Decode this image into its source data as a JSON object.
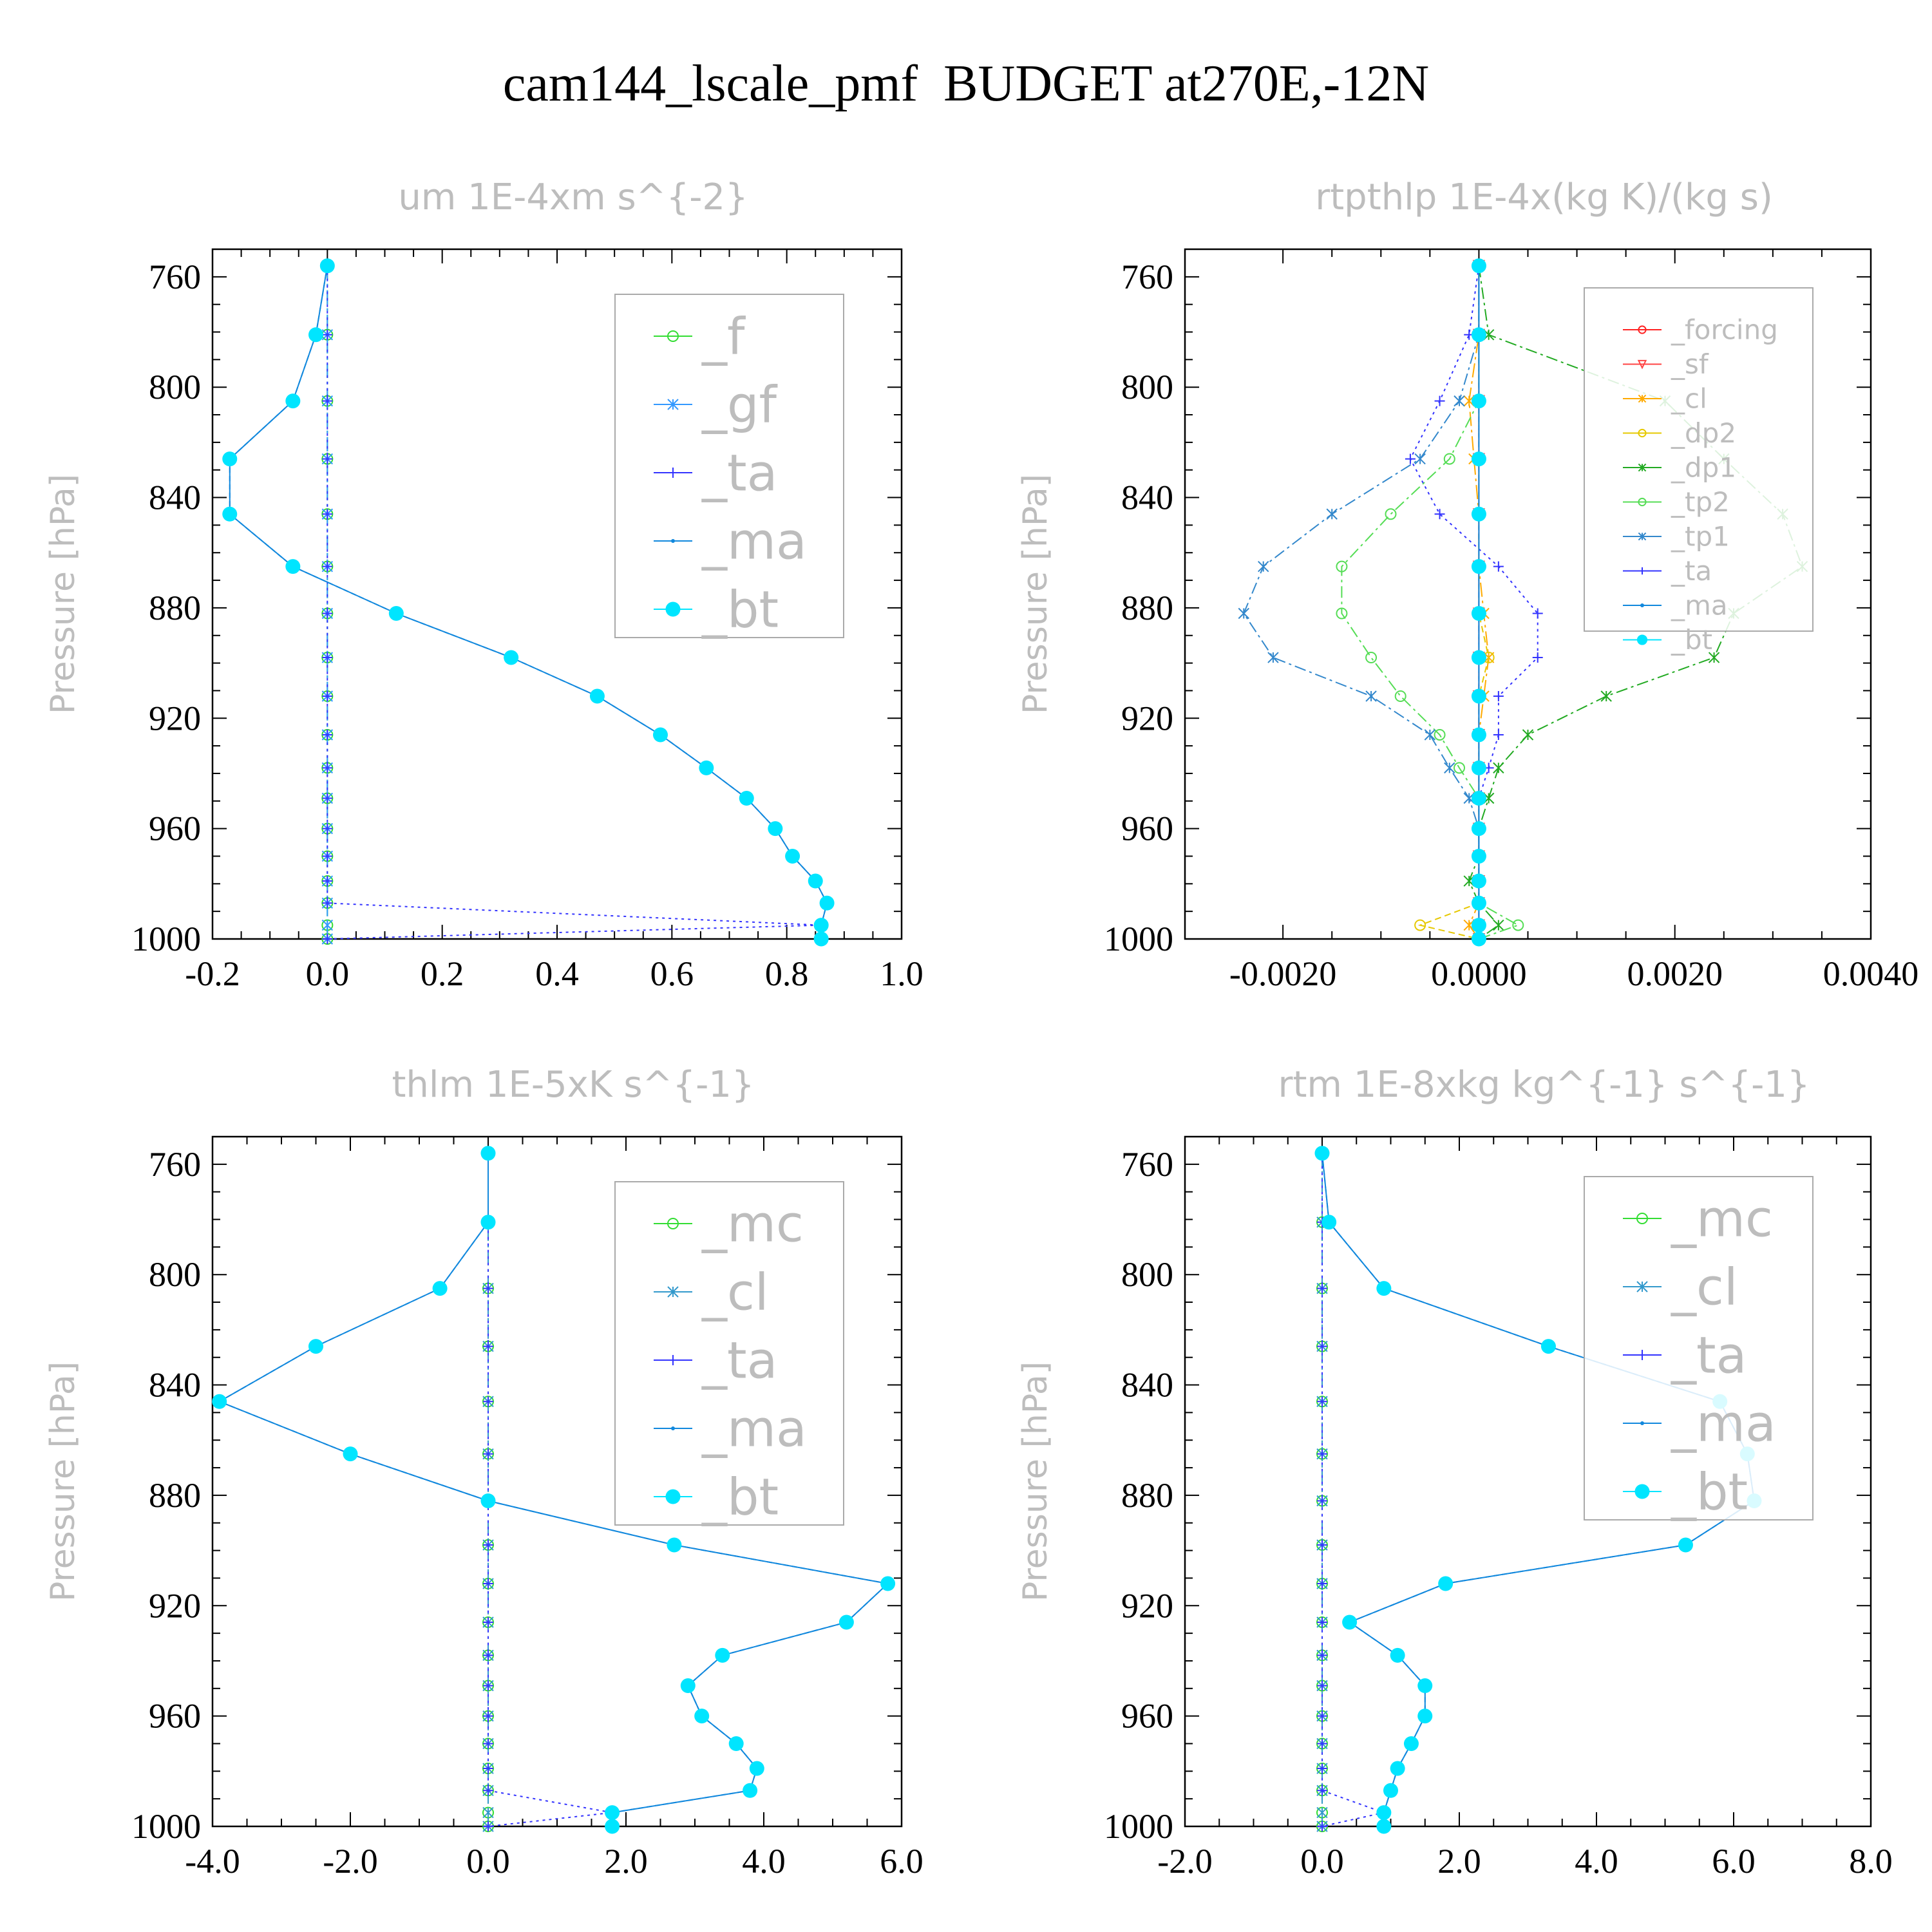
{
  "title": "cam144_lscale_pmf  BUDGET at270E,-12N",
  "colors": {
    "axis": "#000000",
    "thin_text": "#bdbdbd",
    "legend_border": "#aaaaaa",
    "_f": "#33dd33",
    "_gf": "#3399ff",
    "_ta": "#3333ff",
    "_ma": "#1188dd",
    "_bt": "#00e5ff",
    "_mc": "#33dd33",
    "_cl": "#3399cc",
    "_forcing": "#ff2222",
    "_sf": "#ff4444",
    "_cl_rtp": "#ffaa00",
    "_dp2": "#e6c800",
    "_dp1": "#22aa22",
    "_tp2": "#55dd55",
    "_tp1": "#3388cc"
  },
  "chart_data": [
    {
      "type": "line",
      "title": "um  1E-4xm s^{-2}",
      "ylabel": "Pressure [hPa]",
      "xlim": [
        -0.2,
        1.0
      ],
      "ylim": [
        750,
        1000
      ],
      "xticks": [
        "-0.2",
        "0.0",
        "0.2",
        "0.4",
        "0.6",
        "0.8",
        "1.0"
      ],
      "xtick_values": [
        -0.2,
        0.0,
        0.2,
        0.4,
        0.6,
        0.8,
        1.0
      ],
      "yticks": [
        "760",
        "800",
        "840",
        "880",
        "920",
        "960",
        "1000"
      ],
      "ytick_values": [
        760,
        800,
        840,
        880,
        920,
        960,
        1000
      ],
      "legend": "upper-right",
      "levels": [
        756,
        781,
        805,
        826,
        846,
        865,
        882,
        898,
        912,
        926,
        938,
        949,
        960,
        970,
        979,
        987,
        995,
        1000
      ],
      "series": [
        {
          "name": "_f",
          "values": [
            0,
            0,
            0,
            0,
            0,
            0,
            0,
            0,
            0,
            0,
            0,
            0,
            0,
            0,
            0,
            0,
            0,
            0
          ]
        },
        {
          "name": "_gf",
          "values": [
            0,
            0,
            0,
            0,
            0,
            0,
            0,
            0,
            0,
            0,
            0,
            0,
            0,
            0,
            0,
            0,
            0,
            0
          ]
        },
        {
          "name": "_ta",
          "values": [
            0,
            0,
            0,
            0,
            0,
            0,
            0,
            0,
            0,
            0,
            0,
            0,
            0,
            0,
            0,
            0,
            0.86,
            0
          ]
        },
        {
          "name": "_ma",
          "values": [
            0,
            -0.02,
            -0.06,
            -0.17,
            -0.17,
            -0.06,
            0.12,
            0.32,
            0.47,
            0.58,
            0.66,
            0.73,
            0.78,
            0.81,
            0.85,
            0.87,
            0.86,
            0.86
          ]
        },
        {
          "name": "_bt",
          "values": [
            0,
            -0.02,
            -0.06,
            -0.17,
            -0.17,
            -0.06,
            0.12,
            0.32,
            0.47,
            0.58,
            0.66,
            0.73,
            0.78,
            0.81,
            0.85,
            0.87,
            0.86,
            0.86
          ]
        }
      ]
    },
    {
      "type": "line",
      "title": "rtpthlp  1E-4x(kg K)/(kg s)",
      "ylabel": "Pressure [hPa]",
      "xlim": [
        -0.003,
        0.004
      ],
      "ylim": [
        750,
        1000
      ],
      "xticks": [
        "-0.0020",
        "0.0000",
        "0.0020",
        "0.0040"
      ],
      "xtick_values": [
        -0.002,
        0.0,
        0.002,
        0.004
      ],
      "yticks": [
        "760",
        "800",
        "840",
        "880",
        "920",
        "960",
        "1000"
      ],
      "ytick_values": [
        760,
        800,
        840,
        880,
        920,
        960,
        1000
      ],
      "legend": "upper-right",
      "levels": [
        756,
        781,
        805,
        826,
        846,
        865,
        882,
        898,
        912,
        926,
        938,
        949,
        960,
        970,
        979,
        987,
        995,
        1000
      ],
      "series": [
        {
          "name": "_forcing",
          "values": [
            0,
            0,
            0,
            0,
            0,
            0,
            0,
            0,
            0,
            0,
            0,
            0,
            0,
            0,
            0,
            0,
            0,
            0
          ]
        },
        {
          "name": "_sf",
          "values": [
            0,
            0,
            0,
            0,
            0,
            0,
            0,
            0,
            0,
            0,
            0,
            0,
            0,
            0,
            0,
            0,
            0,
            0
          ]
        },
        {
          "name": "_cl",
          "values": [
            0,
            0,
            -0.0001,
            -5e-05,
            0,
            0,
            5e-05,
            0.0001,
            5e-05,
            0,
            0,
            0,
            0,
            0,
            0,
            0,
            -0.0001,
            0
          ]
        },
        {
          "name": "_dp2",
          "values": [
            0,
            0,
            0,
            0,
            0,
            0,
            0,
            0.0001,
            0,
            0,
            0,
            0,
            0,
            0,
            0,
            0,
            -0.0006,
            0
          ]
        },
        {
          "name": "_dp1",
          "values": [
            0,
            0.0001,
            0.0019,
            0.0025,
            0.0031,
            0.0033,
            0.0026,
            0.0024,
            0.0013,
            0.0005,
            0.0002,
            0.0001,
            0,
            0,
            -0.0001,
            0,
            0.0002,
            0
          ]
        },
        {
          "name": "_tp2",
          "values": [
            0,
            0,
            0,
            -0.0003,
            -0.0009,
            -0.0014,
            -0.0014,
            -0.0011,
            -0.0008,
            -0.0004,
            -0.0002,
            0,
            0,
            0,
            0,
            0,
            0.0004,
            0
          ]
        },
        {
          "name": "_tp1",
          "values": [
            0,
            0,
            -0.0002,
            -0.0006,
            -0.0015,
            -0.0022,
            -0.0024,
            -0.0021,
            -0.0011,
            -0.0005,
            -0.0003,
            -0.0001,
            0,
            0,
            0,
            0,
            0,
            0
          ]
        },
        {
          "name": "_ta",
          "values": [
            0,
            -0.0001,
            -0.0004,
            -0.0007,
            -0.0004,
            0.0002,
            0.0006,
            0.0006,
            0.0002,
            0.0002,
            0.0001,
            0,
            0,
            0,
            0,
            0,
            0,
            0
          ]
        },
        {
          "name": "_ma",
          "values": [
            0,
            0,
            0,
            0,
            0,
            0,
            0,
            0,
            0,
            0,
            0,
            0,
            0,
            0,
            0,
            0,
            0,
            0
          ]
        },
        {
          "name": "_bt",
          "values": [
            0,
            0,
            0,
            0,
            0,
            0,
            0,
            0,
            0,
            0,
            0,
            0,
            0,
            0,
            0,
            0,
            0,
            0
          ]
        }
      ]
    },
    {
      "type": "line",
      "title": "thlm  1E-5xK s^{-1}",
      "ylabel": "Pressure [hPa]",
      "xlim": [
        -4.0,
        6.0
      ],
      "ylim": [
        750,
        1000
      ],
      "xticks": [
        "-4.0",
        "-2.0",
        "0.0",
        "2.0",
        "4.0",
        "6.0"
      ],
      "xtick_values": [
        -4,
        -2,
        0,
        2,
        4,
        6
      ],
      "yticks": [
        "760",
        "800",
        "840",
        "880",
        "920",
        "960",
        "1000"
      ],
      "ytick_values": [
        760,
        800,
        840,
        880,
        920,
        960,
        1000
      ],
      "legend": "upper-right",
      "levels": [
        756,
        781,
        805,
        826,
        846,
        865,
        882,
        898,
        912,
        926,
        938,
        949,
        960,
        970,
        979,
        987,
        995,
        1000
      ],
      "series": [
        {
          "name": "_mc",
          "values": [
            0,
            0,
            0,
            0,
            0,
            0,
            0,
            0,
            0,
            0,
            0,
            0,
            0,
            0,
            0,
            0,
            0,
            0
          ]
        },
        {
          "name": "_cl",
          "values": [
            0,
            0,
            0,
            0,
            0,
            0,
            0,
            0,
            0,
            0,
            0,
            0,
            0,
            0,
            0,
            0,
            0,
            0
          ]
        },
        {
          "name": "_ta",
          "values": [
            0,
            0,
            0,
            0,
            0,
            0,
            0,
            0,
            0,
            0,
            0,
            0,
            0,
            0,
            0,
            0,
            1.8,
            0
          ]
        },
        {
          "name": "_ma",
          "values": [
            0,
            0,
            -0.7,
            -2.5,
            -3.9,
            -2.0,
            0,
            2.7,
            5.8,
            5.2,
            3.4,
            2.9,
            3.1,
            3.6,
            3.9,
            3.8,
            1.8,
            1.8
          ]
        },
        {
          "name": "_bt",
          "values": [
            0,
            0,
            -0.7,
            -2.5,
            -3.9,
            -2.0,
            0,
            2.7,
            5.8,
            5.2,
            3.4,
            2.9,
            3.1,
            3.6,
            3.9,
            3.8,
            1.8,
            1.8
          ]
        }
      ]
    },
    {
      "type": "line",
      "title": "rtm  1E-8xkg kg^{-1} s^{-1}",
      "ylabel": "Pressure [hPa]",
      "xlim": [
        -2.0,
        8.0
      ],
      "ylim": [
        750,
        1000
      ],
      "xticks": [
        "-2.0",
        "0.0",
        "2.0",
        "4.0",
        "6.0",
        "8.0"
      ],
      "xtick_values": [
        -2,
        0,
        2,
        4,
        6,
        8
      ],
      "yticks": [
        "760",
        "800",
        "840",
        "880",
        "920",
        "960",
        "1000"
      ],
      "ytick_values": [
        760,
        800,
        840,
        880,
        920,
        960,
        1000
      ],
      "legend": "upper-right",
      "levels": [
        756,
        781,
        805,
        826,
        846,
        865,
        882,
        898,
        912,
        926,
        938,
        949,
        960,
        970,
        979,
        987,
        995,
        1000
      ],
      "series": [
        {
          "name": "_mc",
          "values": [
            0,
            0,
            0,
            0,
            0,
            0,
            0,
            0,
            0,
            0,
            0,
            0,
            0,
            0,
            0,
            0,
            0,
            0
          ]
        },
        {
          "name": "_cl",
          "values": [
            0,
            0,
            0,
            0,
            0,
            0,
            0,
            0,
            0,
            0,
            0,
            0,
            0,
            0,
            0,
            0,
            0,
            0
          ]
        },
        {
          "name": "_ta",
          "values": [
            0,
            0,
            0,
            0,
            0,
            0,
            0,
            0,
            0,
            0,
            0,
            0,
            0,
            0,
            0,
            0,
            0.9,
            0
          ]
        },
        {
          "name": "_ma",
          "values": [
            0,
            0.1,
            0.9,
            3.3,
            5.8,
            6.2,
            6.3,
            5.3,
            1.8,
            0.4,
            1.1,
            1.5,
            1.5,
            1.3,
            1.1,
            1.0,
            0.9,
            0.9
          ]
        },
        {
          "name": "_bt",
          "values": [
            0,
            0.1,
            0.9,
            3.3,
            5.8,
            6.2,
            6.3,
            5.3,
            1.8,
            0.4,
            1.1,
            1.5,
            1.5,
            1.3,
            1.1,
            1.0,
            0.9,
            0.9
          ]
        }
      ]
    }
  ]
}
